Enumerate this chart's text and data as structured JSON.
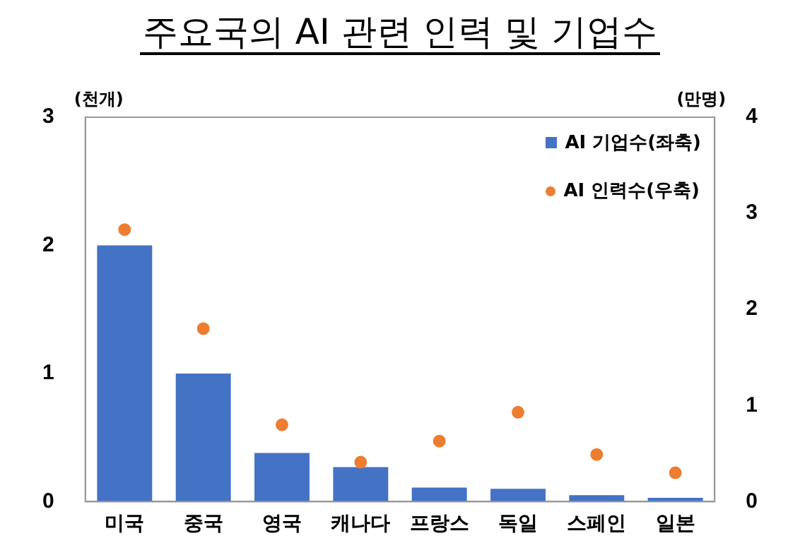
{
  "chart_data": {
    "type": "bar",
    "title": "주요국의 AI 관련 인력 및 기업수",
    "ylabel": "(천개)",
    "y2label": "(만명)",
    "categories": [
      "미국",
      "중국",
      "영국",
      "캐나다",
      "프랑스",
      "독일",
      "스페인",
      "일본"
    ],
    "series": [
      {
        "name": "AI 기업수(좌축)",
        "color": "#4472c4",
        "values": [
          2.0,
          1.0,
          0.38,
          0.27,
          0.11,
          0.1,
          0.05,
          0.03
        ]
      },
      {
        "name": "AI 인력수(우축)",
        "type": "scatter",
        "axis": "y2",
        "color": "#ed7d31",
        "values": [
          2.83,
          1.8,
          0.8,
          0.41,
          0.63,
          0.93,
          0.49,
          0.3
        ]
      }
    ],
    "ylim": [
      0,
      3
    ],
    "yticks": [
      0,
      1,
      2,
      3
    ],
    "y2lim": [
      0,
      4
    ],
    "y2ticks": [
      0,
      1,
      2,
      3,
      4
    ],
    "grid": false,
    "legend": "top right",
    "marker": "circle"
  }
}
